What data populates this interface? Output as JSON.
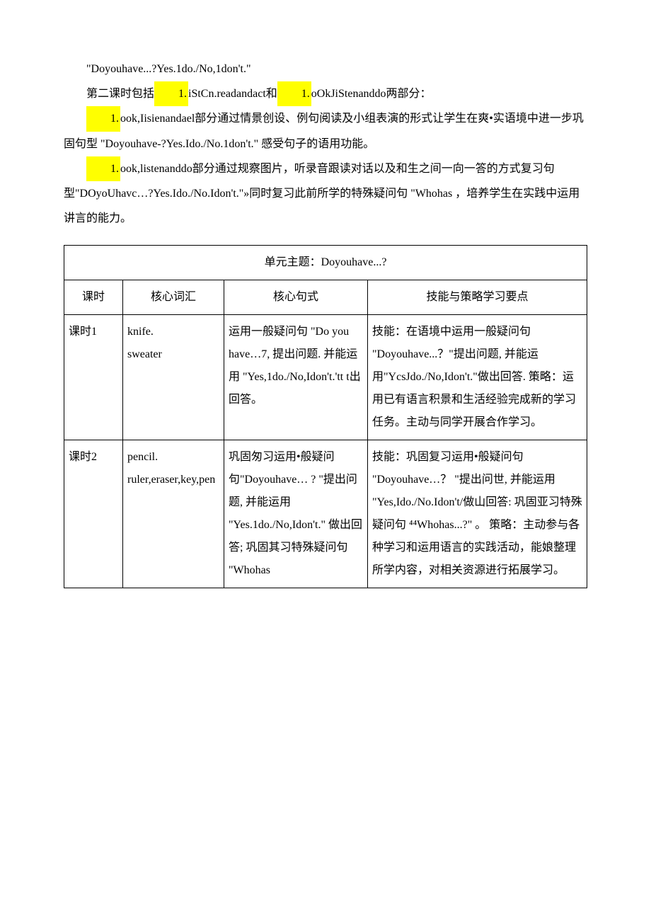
{
  "paragraphs": {
    "p1": "\"Doyouhave...?Yes.1do./No,1don't.\"",
    "p2_pre": "第二课时包括",
    "p2_hl1": "1.",
    "p2_mid1": "iStCn.readandact和",
    "p2_hl2": "1.",
    "p2_mid2": "oOkJiStenanddo两部分：",
    "p3_hl": "1.",
    "p3_text": "ook,Iisienandael部分通过情景创设、例句阅读及小组表演的形式让学生在爽•实语境中进一步巩固句型 \"Doyouhave-?Yes.Ido./No.1don't.\" 感受句子的语用功能。",
    "p4_hl": "1.",
    "p4_text": "ook,listenanddo部分通过规察图片，听录音跟读对话以及和生之间一向一答的方式复习句型\"DOyoUhavc…?Yes.Ido./No.Idon't.\"»同时复习此前所学的特殊疑问句 \"Whohas ，培养学生在实践中运用讲言的能力。"
  },
  "table": {
    "caption": "单元主题：Doyouhave...?",
    "headers": {
      "h1": "课时",
      "h2": "核心词汇",
      "h3": "核心句式",
      "h4": "技能与策略学习要点"
    },
    "rows": [
      {
        "lesson": "课时1",
        "vocab": "knife.\nsweater",
        "pattern": "运用一般疑问句 \"Do you have…7, 提出问题. 并能运用 \"Yes,1do./No,Idon't.'tt t出回答。",
        "skills": "技能：在语境中运用一般疑问句 \"Doyouhave...？\"提出问题, 并能运用\"YcsJdo./No,Idon't.\"做出回答. 策略：运用已有语言积景和生活经验完成新的学习任务。主动与同学开展合作学习。"
      },
      {
        "lesson": "课时2",
        "vocab": "pencil.\nruler,eraser,key,pen",
        "pattern": "巩固匆习运用•般疑问句\"Doyouhave… ? \"提出问题, 并能运用 \"Yes.1do./No,Idon't.\" 做出回答; 巩固其习特殊疑问句 \"Whohas",
        "skills": "技能：巩固复习运用•般疑问句 \"Doyouhave…？ \"提出问世, 并能运用 \"Yes,Ido./No.Idon't/做山回答: 巩固亚习特殊疑问句 ⁴⁴Whohas...?\" 。 策略：主动参与各种学习和运用语言的实践活动，能娘整理所学内容，对相关资源进行拓展学习。"
      }
    ]
  },
  "colors": {
    "highlight": "#ffff00",
    "border": "#000000",
    "text": "#000000",
    "background": "#ffffff"
  }
}
